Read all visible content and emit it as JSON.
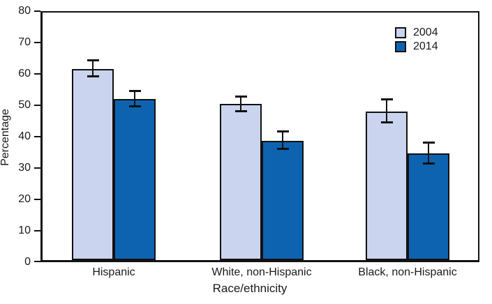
{
  "chart_data": {
    "type": "bar",
    "title": "",
    "xlabel": "Race/ethnicity",
    "ylabel": "Percentage",
    "ylim": [
      0,
      80
    ],
    "yticks": [
      0,
      10,
      20,
      30,
      40,
      50,
      60,
      70,
      80
    ],
    "grid": false,
    "legend_position": "top-right",
    "categories": [
      "Hispanic",
      "White, non-Hispanic",
      "Black, non-Hispanic"
    ],
    "series": [
      {
        "name": "2004",
        "color": "#cbd4ee",
        "values": [
          61.0,
          49.8,
          47.4
        ],
        "error_low": [
          58.5,
          47.5,
          44.0
        ],
        "error_high": [
          63.7,
          52.2,
          51.2
        ]
      },
      {
        "name": "2014",
        "color": "#0e63b0",
        "values": [
          51.4,
          38.0,
          34.0
        ],
        "error_low": [
          49.0,
          35.4,
          30.8
        ],
        "error_high": [
          54.0,
          40.9,
          37.4
        ]
      }
    ],
    "error_bar_color": "#111111",
    "bar_border_color": "#111111",
    "axis_color": "#111111"
  }
}
